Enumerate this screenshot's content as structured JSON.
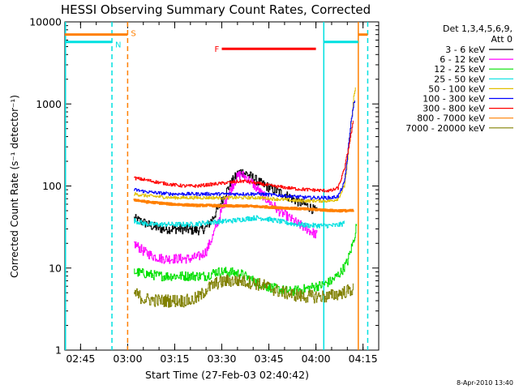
{
  "chart_data": {
    "type": "line",
    "title": "HESSI Observing Summary Count Rates, Corrected",
    "xlabel": "Start Time (27-Feb-03 02:40:42)",
    "ylabel": "Corrected Count Rate (s⁻¹ detector⁻¹)",
    "y_scale": "log",
    "ylim": [
      1,
      10000
    ],
    "xlim_minutes_after_0240": [
      0,
      100
    ],
    "y_ticks": [
      "1",
      "10",
      "100",
      "1000",
      "10000"
    ],
    "x_ticks": [
      {
        "t": 5,
        "label": "02:45"
      },
      {
        "t": 20,
        "label": "03:00"
      },
      {
        "t": 35,
        "label": "03:15"
      },
      {
        "t": 50,
        "label": "03:30"
      },
      {
        "t": 65,
        "label": "03:45"
      },
      {
        "t": 80,
        "label": "04:00"
      },
      {
        "t": 95,
        "label": "04:15"
      }
    ],
    "legend_header": [
      "Det 1,3,4,5,6,9,",
      "Att 0"
    ],
    "legend_placement": "outside-right",
    "series": [
      {
        "name": "3 - 6 keV",
        "color": "#000000",
        "noise": 0.06,
        "points": [
          [
            22,
            40
          ],
          [
            25,
            36
          ],
          [
            28,
            32
          ],
          [
            31,
            30
          ],
          [
            34,
            30
          ],
          [
            37,
            30
          ],
          [
            40,
            29
          ],
          [
            43,
            29
          ],
          [
            45,
            31
          ],
          [
            47,
            40
          ],
          [
            49,
            55
          ],
          [
            51,
            80
          ],
          [
            53,
            110
          ],
          [
            55,
            140
          ],
          [
            56,
            150
          ],
          [
            58,
            140
          ],
          [
            60,
            125
          ],
          [
            62,
            110
          ],
          [
            64,
            100
          ],
          [
            66,
            92
          ],
          [
            68,
            85
          ],
          [
            71,
            75
          ],
          [
            74,
            65
          ],
          [
            77,
            58
          ],
          [
            79,
            52
          ],
          [
            80.5,
            48
          ]
        ]
      },
      {
        "name": "6 - 12 keV",
        "color": "#ff00ff",
        "noise": 0.06,
        "points": [
          [
            22,
            20
          ],
          [
            25,
            16
          ],
          [
            28,
            14
          ],
          [
            31,
            13
          ],
          [
            34,
            13
          ],
          [
            37,
            13
          ],
          [
            40,
            13
          ],
          [
            43,
            14
          ],
          [
            45,
            16
          ],
          [
            47,
            24
          ],
          [
            49,
            40
          ],
          [
            51,
            65
          ],
          [
            53,
            95
          ],
          [
            55,
            130
          ],
          [
            56,
            140
          ],
          [
            58,
            125
          ],
          [
            60,
            105
          ],
          [
            62,
            85
          ],
          [
            64,
            70
          ],
          [
            66,
            60
          ],
          [
            68,
            50
          ],
          [
            71,
            42
          ],
          [
            74,
            35
          ],
          [
            77,
            30
          ],
          [
            79,
            27
          ],
          [
            80.5,
            25
          ]
        ]
      },
      {
        "name": "12 - 25 keV",
        "color": "#00e000",
        "noise": 0.06,
        "points": [
          [
            22,
            9
          ],
          [
            30,
            8
          ],
          [
            40,
            8
          ],
          [
            45,
            8
          ],
          [
            48,
            9
          ],
          [
            52,
            9
          ],
          [
            56,
            8.5
          ],
          [
            60,
            7
          ],
          [
            64,
            6
          ],
          [
            68,
            5.5
          ],
          [
            72,
            5.2
          ],
          [
            76,
            5.5
          ],
          [
            80,
            6
          ],
          [
            82,
            6.2
          ],
          [
            85,
            7
          ],
          [
            88,
            9
          ],
          [
            90,
            12
          ],
          [
            92,
            22
          ],
          [
            93,
            35
          ]
        ]
      },
      {
        "name": "25 - 50 keV",
        "color": "#00e0e0",
        "noise": 0.03,
        "points": [
          [
            22,
            38
          ],
          [
            25,
            35
          ],
          [
            28,
            34
          ],
          [
            31,
            34
          ],
          [
            34,
            34
          ],
          [
            37,
            34
          ],
          [
            40,
            34
          ],
          [
            43,
            35
          ],
          [
            46,
            36
          ],
          [
            50,
            37
          ],
          [
            54,
            38
          ],
          [
            58,
            40
          ],
          [
            61,
            41
          ],
          [
            64,
            40
          ],
          [
            67,
            38
          ],
          [
            70,
            36
          ],
          [
            74,
            34
          ],
          [
            78,
            33
          ],
          [
            82,
            33
          ],
          [
            86,
            33
          ],
          [
            88,
            34
          ],
          [
            89,
            36
          ]
        ]
      },
      {
        "name": "50 - 100 keV",
        "color": "#e0c000",
        "noise": 0.02,
        "points": [
          [
            22,
            80
          ],
          [
            26,
            76
          ],
          [
            30,
            74
          ],
          [
            34,
            72
          ],
          [
            38,
            72
          ],
          [
            42,
            72
          ],
          [
            46,
            72
          ],
          [
            50,
            72
          ],
          [
            54,
            72
          ],
          [
            58,
            72
          ],
          [
            62,
            72
          ],
          [
            66,
            70
          ],
          [
            70,
            68
          ],
          [
            74,
            66
          ],
          [
            78,
            66
          ],
          [
            82,
            66
          ],
          [
            85,
            66
          ],
          [
            87,
            70
          ],
          [
            89,
            100
          ],
          [
            90,
            200
          ],
          [
            91,
            500
          ],
          [
            92,
            1200
          ],
          [
            92.7,
            1700
          ]
        ]
      },
      {
        "name": "100 - 300 keV",
        "color": "#0000ff",
        "noise": 0.02,
        "points": [
          [
            22,
            90
          ],
          [
            26,
            85
          ],
          [
            30,
            82
          ],
          [
            34,
            80
          ],
          [
            38,
            80
          ],
          [
            42,
            80
          ],
          [
            46,
            80
          ],
          [
            50,
            80
          ],
          [
            54,
            80
          ],
          [
            58,
            80
          ],
          [
            62,
            80
          ],
          [
            66,
            78
          ],
          [
            70,
            76
          ],
          [
            74,
            74
          ],
          [
            78,
            72
          ],
          [
            82,
            72
          ],
          [
            85,
            72
          ],
          [
            87,
            75
          ],
          [
            89,
            110
          ],
          [
            90,
            230
          ],
          [
            91,
            550
          ],
          [
            92,
            1000
          ],
          [
            92.5,
            1200
          ]
        ]
      },
      {
        "name": "300 - 800 keV",
        "color": "#ff0000",
        "noise": 0.02,
        "points": [
          [
            22,
            125
          ],
          [
            26,
            118
          ],
          [
            30,
            110
          ],
          [
            34,
            104
          ],
          [
            38,
            100
          ],
          [
            42,
            100
          ],
          [
            46,
            104
          ],
          [
            50,
            108
          ],
          [
            54,
            112
          ],
          [
            57,
            115
          ],
          [
            60,
            110
          ],
          [
            63,
            105
          ],
          [
            66,
            100
          ],
          [
            70,
            96
          ],
          [
            74,
            92
          ],
          [
            78,
            90
          ],
          [
            82,
            88
          ],
          [
            85,
            88
          ],
          [
            87,
            95
          ],
          [
            89,
            160
          ],
          [
            90,
            250
          ],
          [
            91,
            400
          ],
          [
            92,
            650
          ]
        ]
      },
      {
        "name": "800 - 7000 keV",
        "color": "#ff8000",
        "noise": 0.01,
        "points": [
          [
            22,
            68
          ],
          [
            26,
            64
          ],
          [
            30,
            62
          ],
          [
            34,
            60
          ],
          [
            38,
            59
          ],
          [
            42,
            58
          ],
          [
            46,
            58
          ],
          [
            50,
            57
          ],
          [
            54,
            57
          ],
          [
            58,
            57
          ],
          [
            62,
            56
          ],
          [
            66,
            55
          ],
          [
            70,
            54
          ],
          [
            74,
            53
          ],
          [
            78,
            52
          ],
          [
            82,
            51
          ],
          [
            86,
            50
          ],
          [
            90,
            50
          ],
          [
            92,
            50
          ]
        ]
      },
      {
        "name": "7000 - 20000 keV",
        "color": "#808000",
        "noise": 0.08,
        "points": [
          [
            22,
            5
          ],
          [
            25,
            4.2
          ],
          [
            30,
            4
          ],
          [
            35,
            4
          ],
          [
            40,
            4
          ],
          [
            43,
            4.5
          ],
          [
            45,
            5.5
          ],
          [
            48,
            6.5
          ],
          [
            52,
            7
          ],
          [
            56,
            7
          ],
          [
            60,
            6.6
          ],
          [
            64,
            6
          ],
          [
            68,
            5.2
          ],
          [
            72,
            4.8
          ],
          [
            76,
            4.5
          ],
          [
            80,
            4.5
          ],
          [
            84,
            4.5
          ],
          [
            88,
            5
          ],
          [
            92,
            5.5
          ]
        ]
      }
    ],
    "flags": [
      {
        "label": "S",
        "color": "#ff8000",
        "value": 7000,
        "segments": [
          [
            0,
            20
          ],
          [
            93.5,
            96.5
          ]
        ]
      },
      {
        "label": "N",
        "color": "#00e0e0",
        "value": 5700,
        "segments": [
          [
            0,
            15
          ],
          [
            82.5,
            93.5
          ]
        ]
      },
      {
        "label": "F",
        "color": "#ff0000",
        "value": 4700,
        "segments": [
          [
            50,
            80
          ]
        ]
      }
    ],
    "vertical_lines": [
      {
        "t": 0.2,
        "color": "#00e0e0",
        "dash": false
      },
      {
        "t": 15,
        "color": "#00e0e0",
        "dash": true
      },
      {
        "t": 20,
        "color": "#ff8000",
        "dash": true
      },
      {
        "t": 82.5,
        "color": "#00e0e0",
        "dash": false
      },
      {
        "t": 93.5,
        "color": "#ff8000",
        "dash": false
      },
      {
        "t": 96.5,
        "color": "#00e0e0",
        "dash": true
      }
    ]
  },
  "timestamp": "8-Apr-2010 13:40"
}
